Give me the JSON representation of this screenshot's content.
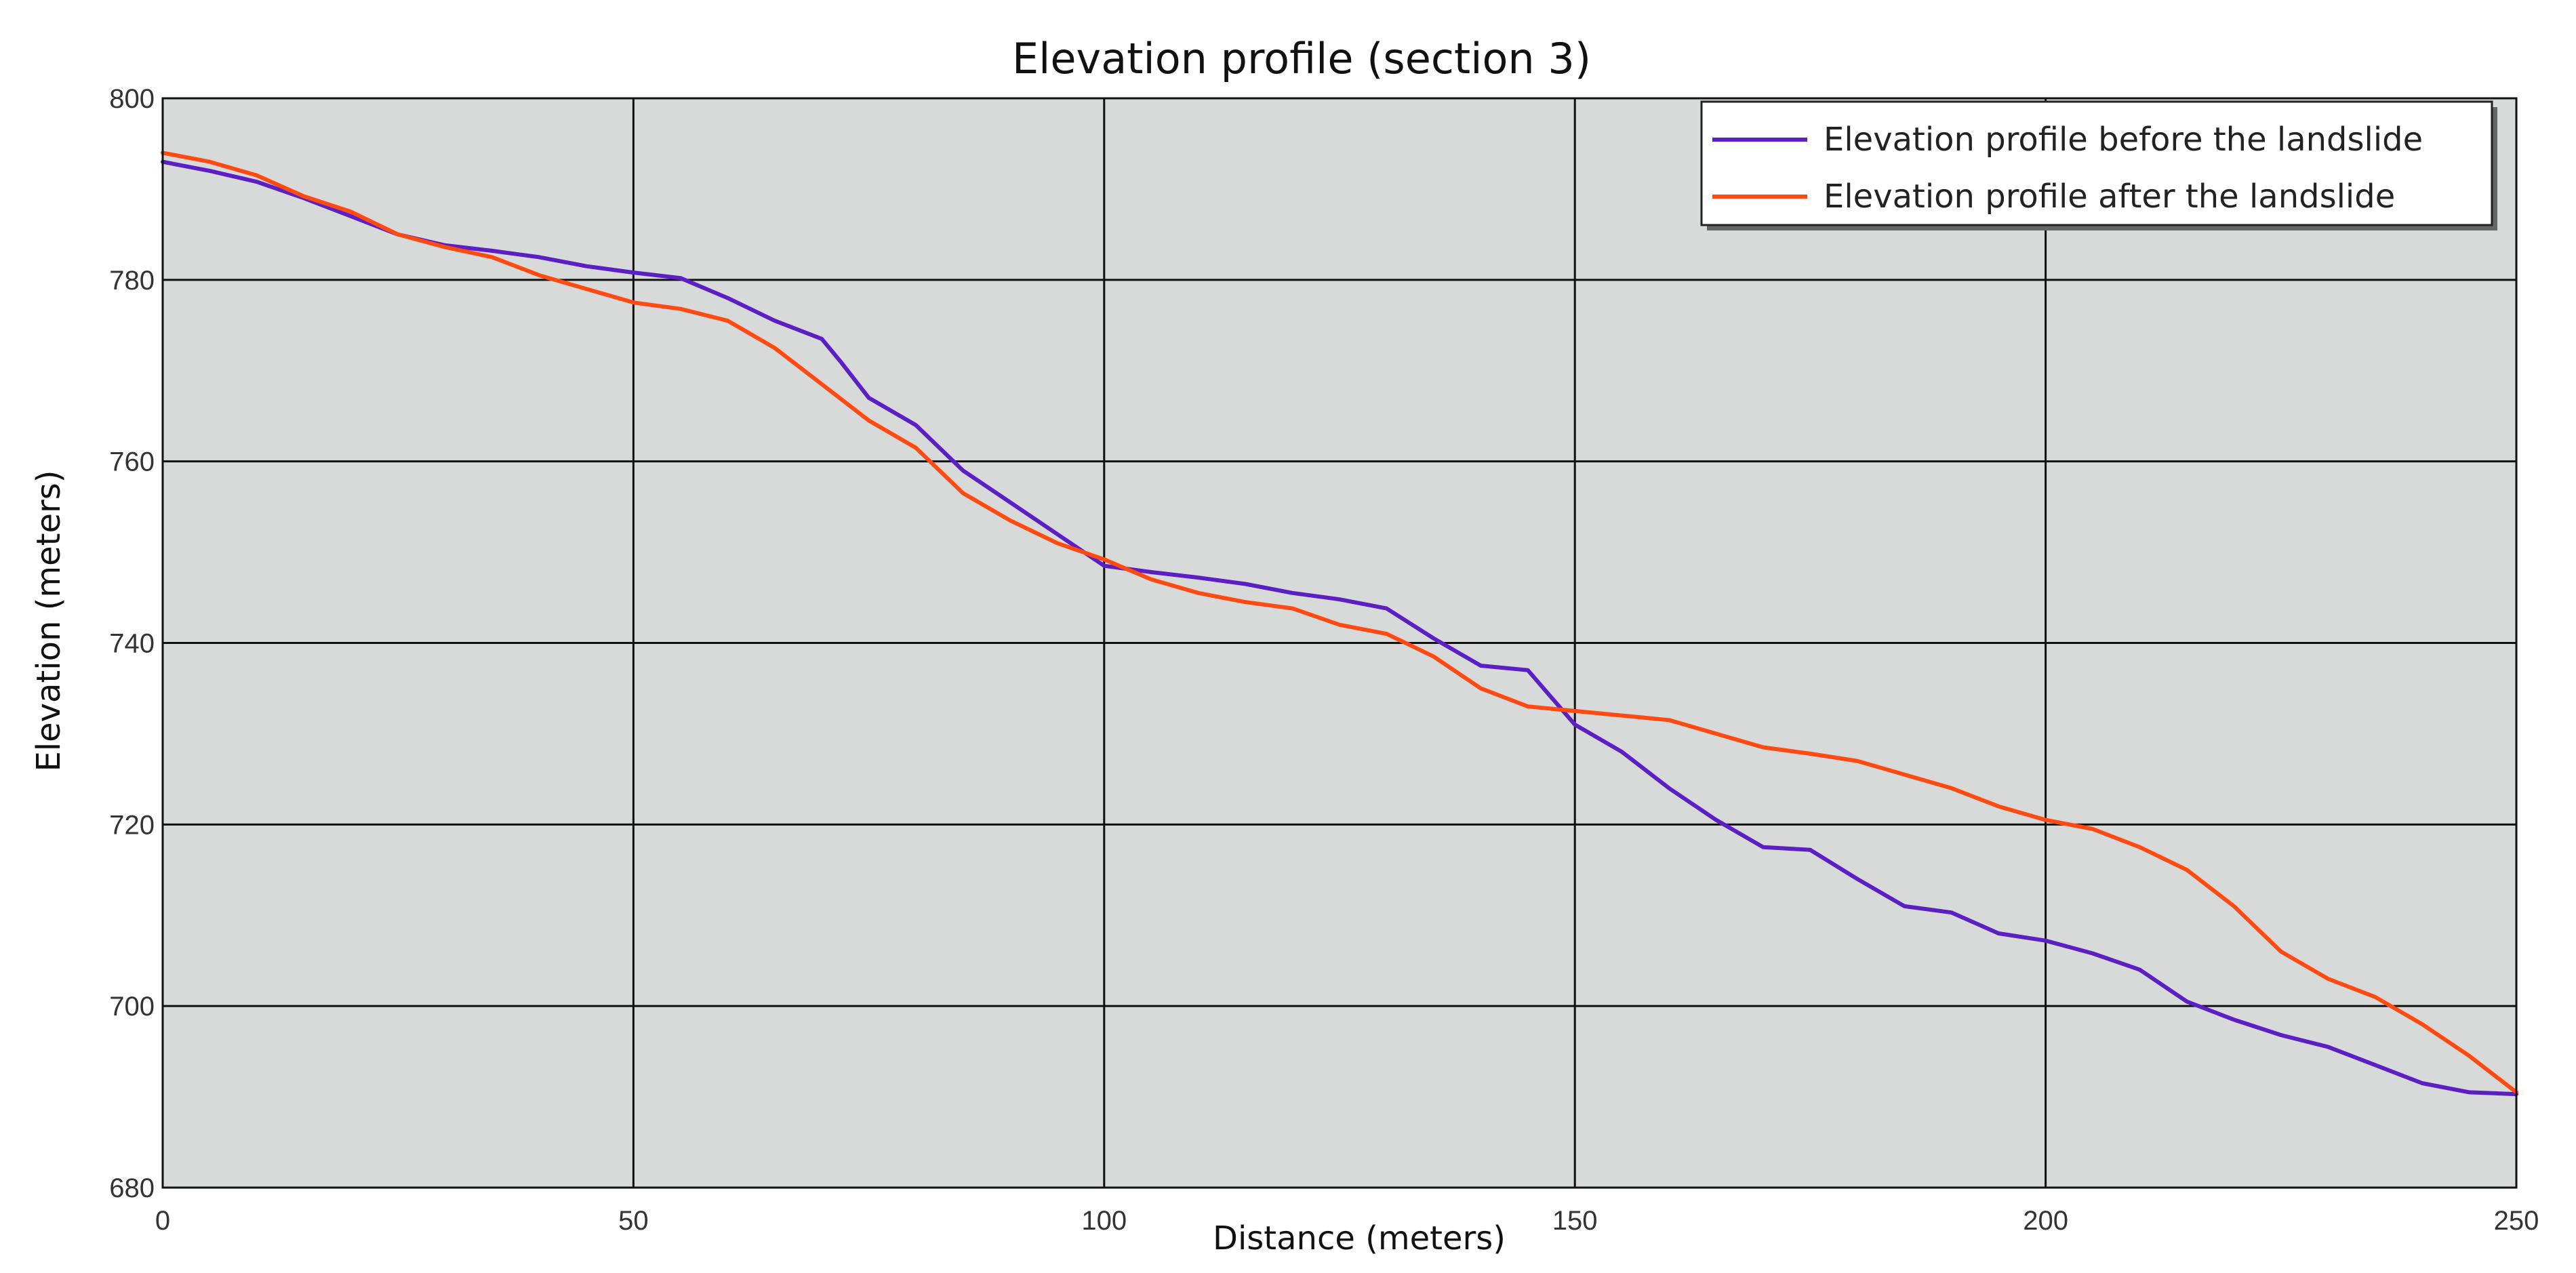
{
  "chart_data": {
    "type": "line",
    "title": "Elevation profile (section 3)",
    "xlabel": "Distance (meters)",
    "ylabel": "Elevation (meters)",
    "xlim": [
      0,
      250
    ],
    "ylim": [
      680,
      800
    ],
    "xticks": [
      0,
      50,
      100,
      150,
      200,
      250
    ],
    "yticks": [
      680,
      700,
      720,
      740,
      760,
      780,
      800
    ],
    "grid": true,
    "legend_position": "top-right",
    "series": [
      {
        "name": "Elevation profile before the landslide",
        "color": "#5b1fc4",
        "x": [
          0,
          5,
          10,
          15,
          20,
          25,
          30,
          35,
          40,
          45,
          50,
          55,
          60,
          65,
          70,
          72,
          75,
          80,
          85,
          90,
          95,
          100,
          105,
          110,
          115,
          120,
          125,
          130,
          135,
          140,
          145,
          150,
          155,
          160,
          165,
          170,
          175,
          180,
          185,
          190,
          195,
          200,
          205,
          210,
          215,
          220,
          225,
          230,
          235,
          240,
          245,
          250
        ],
        "values": [
          793,
          792,
          790.8,
          789,
          787,
          785,
          783.8,
          783.2,
          782.5,
          781.5,
          780.8,
          780.2,
          778,
          775.5,
          773.5,
          771,
          767,
          764,
          759,
          755.5,
          752,
          748.5,
          747.8,
          747.2,
          746.5,
          745.5,
          744.8,
          743.8,
          740.5,
          737.5,
          737,
          731,
          728,
          724,
          720.5,
          717.5,
          717.2,
          714,
          711,
          710.3,
          708,
          707.2,
          705.8,
          704,
          700.5,
          698.5,
          696.8,
          695.5,
          693.5,
          691.5,
          690.5,
          690.3
        ]
      },
      {
        "name": "Elevation profile after the landslide",
        "color": "#ff4a12",
        "x": [
          0,
          5,
          10,
          15,
          20,
          25,
          30,
          35,
          40,
          45,
          50,
          55,
          60,
          65,
          70,
          75,
          80,
          85,
          90,
          95,
          100,
          105,
          110,
          115,
          120,
          125,
          130,
          135,
          140,
          145,
          150,
          155,
          160,
          165,
          170,
          175,
          180,
          185,
          190,
          195,
          200,
          205,
          210,
          215,
          220,
          225,
          230,
          235,
          240,
          245,
          250
        ],
        "values": [
          794,
          793,
          791.5,
          789.2,
          787.5,
          785,
          783.6,
          782.5,
          780.5,
          779,
          777.5,
          776.8,
          775.5,
          772.5,
          768.5,
          764.5,
          761.5,
          756.5,
          753.5,
          751,
          749.2,
          747,
          745.5,
          744.5,
          743.8,
          742,
          741,
          738.5,
          735,
          733,
          732.5,
          732,
          731.5,
          730,
          728.5,
          727.8,
          727,
          725.5,
          724,
          722,
          720.5,
          719.5,
          717.5,
          715,
          711,
          706,
          703,
          701,
          698,
          694.5,
          690.5
        ]
      }
    ]
  }
}
